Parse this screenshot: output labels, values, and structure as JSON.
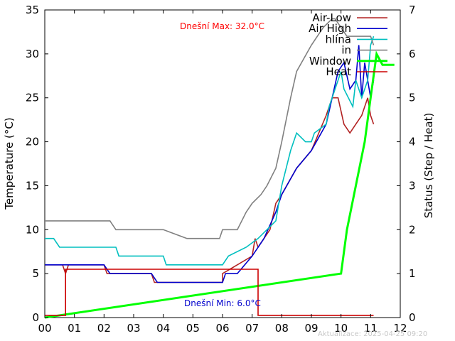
{
  "chart_data": {
    "type": "line",
    "xlabel": "",
    "ylabel": "Temperature (°C)",
    "y2label": "Status (Step / Heat)",
    "xlim": [
      0,
      12
    ],
    "ylim": [
      0,
      35
    ],
    "y2lim": [
      0,
      7
    ],
    "grid": false,
    "legend_position": "top-right",
    "x_tick_labels": [
      "00",
      "01",
      "02",
      "03",
      "04",
      "05",
      "06",
      "07",
      "08",
      "09",
      "10",
      "11",
      "12"
    ],
    "y_tick_labels": [
      "0",
      "5",
      "10",
      "15",
      "20",
      "25",
      "30",
      "35"
    ],
    "y2_tick_labels": [
      "0",
      "1",
      "2",
      "3",
      "4",
      "5",
      "6",
      "7"
    ],
    "annotations": {
      "max_text": "Dnešní Max: 32.0°C",
      "min_text": "Dnešní Min: 6.0°C",
      "updated_text": "Aktualizace: 2025-04-25 09:20"
    },
    "series": [
      {
        "name": "Air-Low",
        "color": "#b22222",
        "axis": "y1",
        "x": [
          0,
          0.6,
          0.7,
          0.8,
          2,
          2.1,
          3.6,
          3.7,
          5,
          6,
          6,
          7,
          7.1,
          7.2,
          7.4,
          7.6,
          7.8,
          8,
          8.5,
          9,
          9.5,
          9.7,
          9.9,
          10.1,
          10.3,
          10.5,
          10.7,
          10.9,
          11,
          11.1
        ],
        "y": [
          6,
          6,
          5,
          6,
          6,
          5,
          5,
          4,
          4,
          4,
          5,
          7,
          9,
          8,
          9,
          10,
          13,
          14,
          17,
          19,
          23,
          25,
          25,
          22,
          21,
          22,
          23,
          25,
          23,
          22
        ]
      },
      {
        "name": "Air High",
        "color": "#0000cc",
        "axis": "y1",
        "x": [
          0,
          0.6,
          2,
          2.2,
          3.6,
          3.8,
          5,
          6,
          6.1,
          6.5,
          7,
          7.4,
          7.8,
          8,
          8.5,
          9,
          9.5,
          9.7,
          9.9,
          10.1,
          10.3,
          10.5,
          10.6,
          10.7,
          10.8,
          10.9,
          11,
          11.1
        ],
        "y": [
          6,
          6,
          6,
          5,
          5,
          4,
          4,
          4,
          5,
          5,
          7,
          9,
          12,
          14,
          17,
          19,
          22,
          25,
          28,
          29,
          26,
          27,
          31,
          25,
          29,
          27,
          25,
          27
        ]
      },
      {
        "name": "hlína",
        "color": "#00bfbf",
        "axis": "y1",
        "x": [
          0,
          0.3,
          0.5,
          1.5,
          2.4,
          2.5,
          4,
          4.1,
          5,
          6,
          6.2,
          6.8,
          7.2,
          7.8,
          8,
          8.3,
          8.5,
          8.8,
          9,
          9.1,
          9.5,
          9.6,
          9.9,
          10,
          10.1,
          10.4,
          10.5,
          10.7,
          10.9,
          11,
          11.1
        ],
        "y": [
          9,
          9,
          8,
          8,
          8,
          7,
          7,
          6,
          6,
          6,
          7,
          8,
          9,
          11,
          15,
          19,
          21,
          20,
          20,
          21,
          22,
          24,
          27,
          28,
          26,
          24,
          27,
          25,
          27,
          31,
          32
        ]
      },
      {
        "name": "in",
        "color": "#808080",
        "axis": "y1",
        "x": [
          0,
          2.2,
          2.4,
          4,
          4.8,
          5.9,
          6,
          6.5,
          6.8,
          7,
          7.3,
          7.5,
          7.8,
          8,
          8.3,
          8.5,
          9,
          9.4,
          9.7,
          9.8,
          10.2,
          10.4,
          11,
          11.1
        ],
        "y": [
          11,
          11,
          10,
          10,
          9,
          9,
          10,
          10,
          12,
          13,
          14,
          15,
          17,
          20,
          25,
          28,
          31,
          33,
          34,
          34,
          32,
          32,
          32,
          31
        ]
      },
      {
        "name": "Window",
        "color": "#00ff00",
        "axis": "y2",
        "x": [
          0,
          10,
          10.2,
          10.5,
          10.8,
          11,
          11.2,
          11.4,
          11.8
        ],
        "y": [
          0,
          1,
          2,
          3,
          4,
          5,
          6,
          5.75,
          5.75
        ]
      },
      {
        "name": "Heat",
        "color": "#cc0000",
        "axis": "y2",
        "x": [
          0,
          0.7,
          0.7,
          7.2,
          7.2,
          11.1
        ],
        "y": [
          0.05,
          0.05,
          1.1,
          1.1,
          0.05,
          0.05
        ]
      }
    ]
  }
}
